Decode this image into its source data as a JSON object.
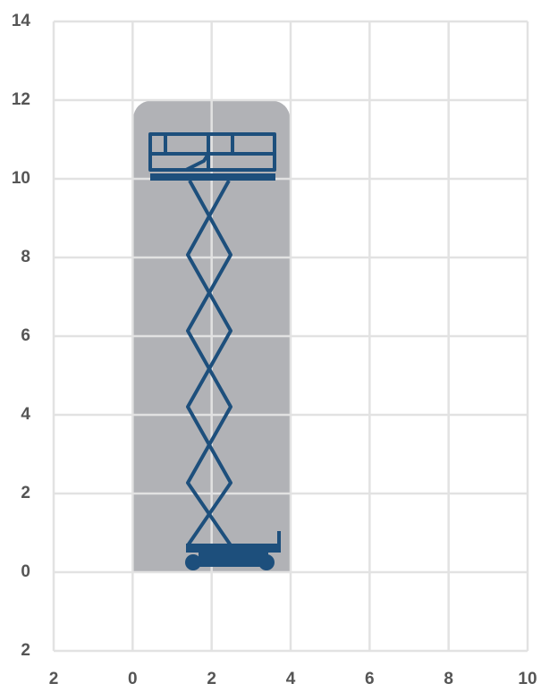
{
  "chart_data": {
    "type": "range",
    "xlim": [
      -2,
      10
    ],
    "xticks": [
      {
        "value": -2,
        "label": "2"
      },
      0,
      2,
      4,
      6,
      8,
      10
    ],
    "ylim": [
      -2,
      14
    ],
    "yticks": [
      {
        "value": -2,
        "label": "2"
      },
      0,
      2,
      4,
      6,
      8,
      10,
      12,
      14
    ],
    "grid": true,
    "envelope": {
      "x": [
        0,
        4
      ],
      "y": [
        0,
        12
      ],
      "color": "#b1b2b6"
    }
  }
}
